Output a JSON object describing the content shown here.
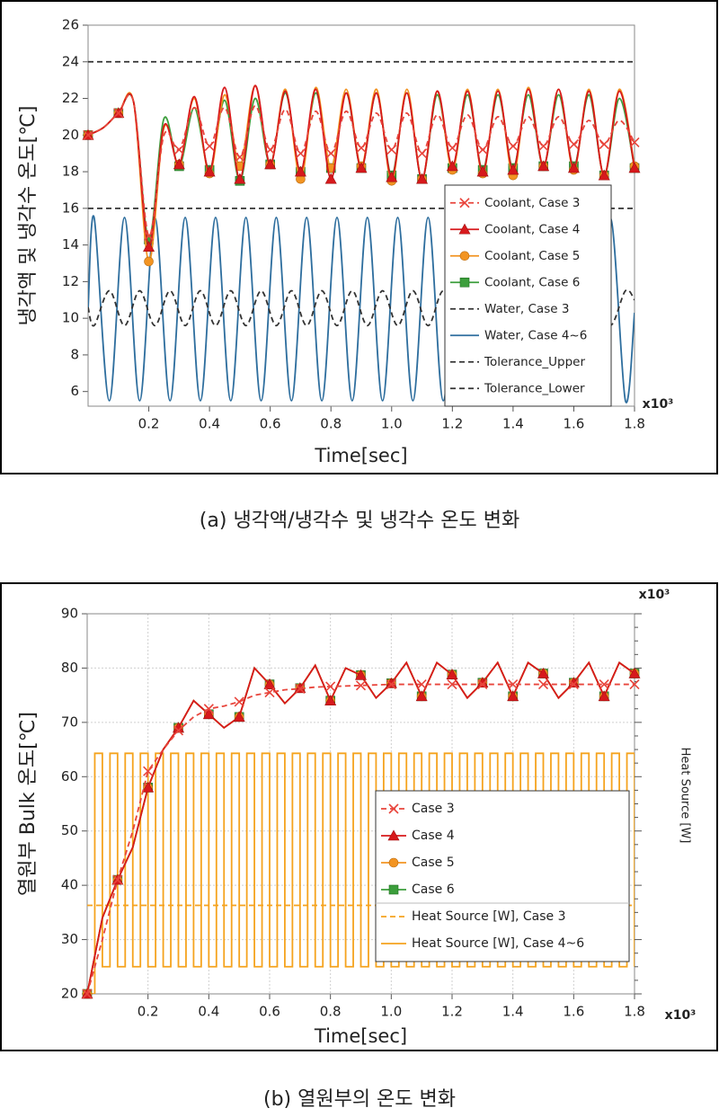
{
  "chart_data": [
    {
      "type": "line",
      "ylabel": "냉각액 및 냉각수 온도[℃]",
      "xlabel": "Time[sec]",
      "x_multiplier": "x10³",
      "caption": "(a) 냉각액/냉각수 및 냉각수 온도 변화",
      "xlim": [
        0,
        1.8
      ],
      "ylim": [
        5.2,
        26
      ],
      "xticks": [
        0.2,
        0.4,
        0.6,
        0.8,
        {
          "value": 1,
          "label": "1.0"
        },
        1.2,
        1.4,
        1.6,
        1.8
      ],
      "yticks": [
        6,
        8,
        10,
        12,
        14,
        16,
        18,
        20,
        22,
        24,
        26
      ],
      "grid": false,
      "smooth": true,
      "legend": "lower right",
      "x": [
        0,
        0.05,
        0.1,
        0.15,
        0.2,
        0.25,
        0.3,
        0.35,
        0.4,
        0.45,
        0.5,
        0.55,
        0.6,
        0.65,
        0.7,
        0.75,
        0.8,
        0.85,
        0.9,
        0.95,
        1,
        1.05,
        1.1,
        1.15,
        1.2,
        1.25,
        1.3,
        1.35,
        1.4,
        1.45,
        1.5,
        1.55,
        1.6,
        1.65,
        1.7,
        1.75,
        1.8
      ],
      "series": [
        {
          "name": "Coolant, Case 3",
          "color": "#e8453c",
          "linestyle": "dashed",
          "marker": "x",
          "markevery": 2,
          "values": [
            20,
            20.4,
            21.2,
            21.8,
            14.5,
            20,
            19.2,
            21.5,
            19.4,
            21.5,
            18.8,
            21.6,
            19.2,
            21.4,
            19,
            21.3,
            19,
            21.3,
            19.3,
            21.2,
            19.2,
            21.2,
            19,
            21.1,
            19.3,
            21.1,
            19.2,
            21,
            19.4,
            21,
            19.4,
            21,
            19.5,
            20.8,
            19.5,
            20.8,
            19.6
          ]
        },
        {
          "name": "Coolant, Case 4",
          "color": "#d7191c",
          "marker": "triangle",
          "markevery": 2,
          "values": [
            20,
            20.4,
            21.2,
            21.8,
            13.9,
            20.5,
            18.4,
            22.1,
            18,
            22.6,
            17.6,
            22.7,
            18.4,
            22.4,
            18,
            22.5,
            17.6,
            22.3,
            18.2,
            22.3,
            17.7,
            22.3,
            17.6,
            22.4,
            18.3,
            22.4,
            18,
            22.4,
            18.1,
            22.5,
            18.3,
            22.5,
            18.2,
            22.4,
            17.8,
            22.4,
            18.2
          ]
        },
        {
          "name": "Coolant, Case 5",
          "color": "#f29422",
          "marker": "circle",
          "markevery": 2,
          "values": [
            20,
            20.4,
            21.2,
            21.8,
            13.1,
            20.4,
            18.4,
            22,
            17.9,
            22.2,
            18.3,
            22.7,
            18.4,
            22.5,
            17.6,
            22.6,
            18.2,
            22.5,
            18.3,
            22.5,
            17.5,
            22.5,
            17.6,
            22.4,
            18.1,
            22.5,
            17.9,
            22.5,
            17.8,
            22.6,
            18.3,
            22.5,
            18.1,
            22.5,
            17.8,
            22.5,
            18.3
          ]
        },
        {
          "name": "Coolant, Case 6",
          "color": "#3c9e3c",
          "marker": "square",
          "markevery": 2,
          "values": [
            20,
            20.4,
            21.2,
            21.8,
            14.3,
            20.9,
            18.3,
            21.5,
            18.1,
            21.9,
            17.5,
            22,
            18.4,
            22.3,
            18,
            22.3,
            18.2,
            22.3,
            18.2,
            22.3,
            17.8,
            22.3,
            17.6,
            22.2,
            18.2,
            22.2,
            18.1,
            22.2,
            18.2,
            22.2,
            18.3,
            22.2,
            18.3,
            22.2,
            17.8,
            22,
            18.2
          ]
        },
        {
          "name": "Water, Case 3",
          "color": "#333333",
          "linestyle": "dashed",
          "x": [
            0,
            0.02,
            0.07,
            0.12,
            0.17,
            0.22,
            0.27,
            0.32,
            0.37,
            0.42,
            0.47,
            0.52,
            0.57,
            0.62,
            0.67,
            0.72,
            0.77,
            0.82,
            0.87,
            0.92,
            0.97,
            1.02,
            1.07,
            1.12,
            1.17,
            1.22,
            1.27,
            1.32,
            1.37,
            1.42,
            1.47,
            1.52,
            1.57,
            1.62,
            1.67,
            1.72,
            1.77,
            1.8
          ],
          "values": [
            10.6,
            9.6,
            11.5,
            9.6,
            11.5,
            9.6,
            11.5,
            9.6,
            11.5,
            9.6,
            11.5,
            9.6,
            11.5,
            9.6,
            11.5,
            9.6,
            11.5,
            9.6,
            11.5,
            9.6,
            11.5,
            9.6,
            11.5,
            9.6,
            11.5,
            9.6,
            11.5,
            9.6,
            11.5,
            9.6,
            11.5,
            9.6,
            11.5,
            9.6,
            11.5,
            9.6,
            11.5,
            11
          ]
        },
        {
          "name": "Water, Case 4~6",
          "color": "#2e6e9e",
          "x": [
            0,
            0.02,
            0.07,
            0.12,
            0.17,
            0.22,
            0.27,
            0.32,
            0.37,
            0.42,
            0.47,
            0.52,
            0.57,
            0.62,
            0.67,
            0.72,
            0.77,
            0.82,
            0.87,
            0.92,
            0.97,
            1.02,
            1.07,
            1.12,
            1.17,
            1.22,
            1.27,
            1.32,
            1.37,
            1.42,
            1.47,
            1.52,
            1.57,
            1.62,
            1.67,
            1.72,
            1.77,
            1.8
          ],
          "values": [
            10.5,
            15.5,
            5.5,
            15.5,
            5.5,
            15.5,
            5.5,
            15.5,
            5.5,
            15.5,
            5.5,
            15.5,
            5.5,
            15.5,
            5.5,
            15.5,
            5.5,
            15.5,
            5.5,
            15.5,
            5.5,
            15.5,
            5.5,
            15.5,
            5.5,
            15.5,
            5.5,
            15.5,
            5.5,
            15.5,
            5.5,
            15.5,
            5.5,
            15.5,
            5.5,
            15.5,
            5.5,
            10.3
          ]
        },
        {
          "name": "Tolerance_Upper",
          "color": "#333333",
          "linestyle": "dashed",
          "x": [
            0,
            1.8
          ],
          "values": [
            24,
            24
          ]
        },
        {
          "name": "Tolerance_Lower",
          "color": "#333333",
          "linestyle": "dashed",
          "x": [
            0,
            1.8
          ],
          "values": [
            16,
            16
          ]
        }
      ]
    },
    {
      "type": "line",
      "ylabel": "열원부 Bulk 온도[℃]",
      "xlabel": "Time[sec]",
      "x_multiplier": "x10³",
      "y2label": "Heat Source [W]",
      "y2_multiplier": "x10³",
      "caption": "(b) 열원부의 온도 변화",
      "xlim": [
        0,
        1.8
      ],
      "ylim": [
        20,
        90
      ],
      "xticks": [
        0.2,
        0.4,
        0.6,
        0.8,
        {
          "value": 1,
          "label": "1.0"
        },
        1.2,
        1.4,
        1.6,
        1.8
      ],
      "yticks": [
        20,
        30,
        40,
        50,
        60,
        70,
        80,
        90
      ],
      "grid": true,
      "smooth": false,
      "legend": "lower right",
      "x": [
        0,
        0.05,
        0.1,
        0.15,
        0.2,
        0.25,
        0.3,
        0.35,
        0.4,
        0.45,
        0.5,
        0.55,
        0.6,
        0.65,
        0.7,
        0.75,
        0.8,
        0.85,
        0.9,
        0.95,
        1,
        1.05,
        1.1,
        1.15,
        1.2,
        1.25,
        1.3,
        1.35,
        1.4,
        1.45,
        1.5,
        1.55,
        1.6,
        1.65,
        1.7,
        1.75,
        1.8
      ],
      "series": [
        {
          "name": "Case 3",
          "color": "#e8453c",
          "linestyle": "dashed",
          "marker": "x",
          "markevery": 2,
          "values": [
            20,
            30,
            41,
            50,
            61,
            65,
            68.5,
            71,
            72.5,
            73,
            73.8,
            75,
            75.5,
            76,
            76.2,
            76.5,
            76.6,
            76.7,
            76.8,
            76.9,
            77,
            77,
            77,
            77,
            77,
            77,
            77,
            77,
            77,
            77,
            77,
            77,
            77,
            77,
            77,
            77,
            77
          ]
        },
        {
          "name": "Case 4",
          "color": "#d7191c",
          "marker": "triangle",
          "markevery": 2,
          "values": [
            20,
            34,
            41,
            47,
            58,
            65,
            69,
            74,
            71.5,
            69,
            71,
            80,
            77,
            73.5,
            76.3,
            80.5,
            74,
            80,
            78.7,
            74.5,
            77.2,
            81,
            74.8,
            81,
            78.8,
            74.5,
            77.3,
            81,
            74.8,
            81,
            79,
            74.5,
            77.3,
            81,
            74.8,
            81,
            79
          ]
        },
        {
          "name": "Case 5",
          "color": "#f29422",
          "marker": "circle",
          "markevery": 2,
          "values": [
            20,
            34,
            41,
            47,
            58,
            65,
            69,
            74,
            71.5,
            69,
            71,
            80,
            77,
            73.5,
            76.3,
            80.5,
            74,
            80,
            78.7,
            74.5,
            77.2,
            81,
            74.8,
            81,
            78.8,
            74.5,
            77.3,
            81,
            74.8,
            81,
            79,
            74.5,
            77.3,
            81,
            74.8,
            81,
            79
          ]
        },
        {
          "name": "Case 6",
          "color": "#3c9e3c",
          "marker": "square",
          "markevery": 2,
          "values": [
            20,
            34,
            41,
            47,
            58,
            65,
            69,
            74,
            71.5,
            69,
            71,
            80,
            77,
            73.5,
            76.3,
            80.5,
            74,
            80,
            78.7,
            74.5,
            77.2,
            81,
            74.8,
            81,
            78.8,
            74.5,
            77.3,
            81,
            74.8,
            81,
            79,
            74.5,
            77.3,
            81,
            74.8,
            81,
            79
          ]
        },
        {
          "name": "Heat Source [W], Case 3",
          "color": "#f5a31e",
          "linestyle": "dashed",
          "x": [
            0,
            1.8
          ],
          "values": [
            36.3,
            36.3
          ]
        },
        {
          "name": "Heat Source [W], Case 4~6",
          "color": "#f5a31e",
          "drawstyle": "steps-post",
          "x": [
            0,
            0.025,
            0.05,
            0.075,
            0.1,
            0.125,
            0.15,
            0.175,
            0.2,
            0.225,
            0.25,
            0.275,
            0.3,
            0.325,
            0.35,
            0.375,
            0.4,
            0.425,
            0.45,
            0.475,
            0.5,
            0.525,
            0.55,
            0.575,
            0.6,
            0.625,
            0.65,
            0.675,
            0.7,
            0.725,
            0.75,
            0.775,
            0.8,
            0.825,
            0.85,
            0.875,
            0.9,
            0.925,
            0.95,
            0.975,
            1,
            1.025,
            1.05,
            1.075,
            1.1,
            1.125,
            1.15,
            1.175,
            1.2,
            1.225,
            1.25,
            1.275,
            1.3,
            1.325,
            1.35,
            1.375,
            1.4,
            1.425,
            1.45,
            1.475,
            1.5,
            1.525,
            1.55,
            1.575,
            1.6,
            1.625,
            1.65,
            1.675,
            1.7,
            1.725,
            1.75,
            1.775,
            1.8
          ],
          "values": [
            20,
            64.3,
            25,
            64.3,
            25,
            64.3,
            25,
            64.3,
            25,
            64.3,
            25,
            64.3,
            25,
            64.3,
            25,
            64.3,
            25,
            64.3,
            25,
            64.3,
            25,
            64.3,
            25,
            64.3,
            25,
            64.3,
            25,
            64.3,
            25,
            64.3,
            25,
            64.3,
            25,
            64.3,
            25,
            64.3,
            25,
            64.3,
            25,
            64.3,
            25,
            64.3,
            25,
            64.3,
            25,
            64.3,
            25,
            64.3,
            25,
            64.3,
            25,
            64.3,
            25,
            64.3,
            25,
            64.3,
            25,
            64.3,
            25,
            64.3,
            25,
            64.3,
            25,
            64.3,
            25,
            64.3,
            25,
            64.3,
            25,
            64.3,
            25,
            64.3,
            25
          ]
        }
      ]
    }
  ]
}
